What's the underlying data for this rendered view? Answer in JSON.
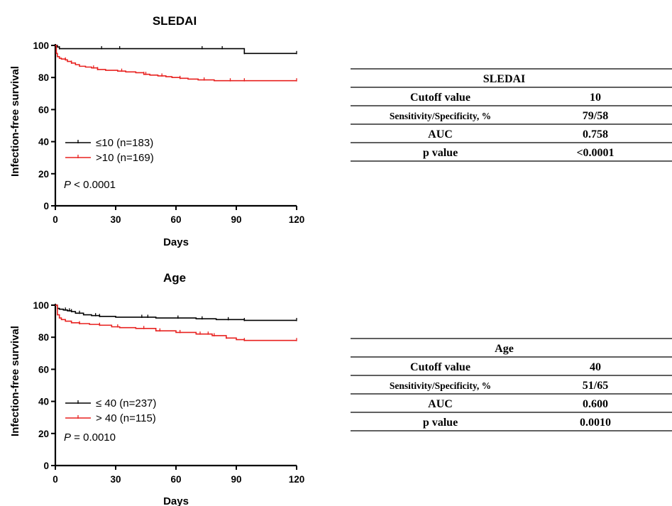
{
  "chart_data": [
    {
      "type": "line",
      "subtype": "kaplan-meier",
      "title": "SLEDAI",
      "xlabel": "Days",
      "ylabel": "Infection-free survival",
      "xlim": [
        0,
        120
      ],
      "ylim": [
        0,
        100
      ],
      "xticks": [
        0,
        30,
        60,
        90,
        120
      ],
      "yticks": [
        0,
        20,
        40,
        60,
        80,
        100
      ],
      "p_value": {
        "prefix": "P",
        "text": " < 0.0001"
      },
      "legend_placement": "lower-left",
      "series": [
        {
          "name": "≤10 (n=183)",
          "color": "#000000",
          "x": [
            0,
            1,
            2,
            94,
            120
          ],
          "y": [
            100,
            99,
            98,
            95,
            95
          ],
          "censor_x": [
            2,
            23,
            32,
            73,
            83,
            94,
            120
          ]
        },
        {
          "name": ">10 (n=169)",
          "color": "#e8211f",
          "x": [
            0,
            0.5,
            1,
            2,
            3,
            5,
            6,
            8,
            10,
            12,
            15,
            18,
            21,
            25,
            28,
            31,
            35,
            40,
            44,
            47,
            51,
            55,
            58,
            62,
            66,
            71,
            75,
            79,
            94,
            120
          ],
          "y": [
            100,
            95,
            93,
            92,
            91.5,
            91,
            90,
            89,
            88,
            87,
            86.5,
            86,
            85,
            84.5,
            84.5,
            84,
            83.5,
            83,
            82,
            81.5,
            81,
            80.5,
            80,
            79.5,
            79,
            78.5,
            78.5,
            78,
            78,
            78
          ],
          "censor_x": [
            5,
            8,
            19,
            21,
            33,
            44,
            45,
            53,
            62,
            74,
            87,
            94,
            120
          ]
        }
      ]
    },
    {
      "type": "line",
      "subtype": "kaplan-meier",
      "title": "Age",
      "xlabel": "Days",
      "ylabel": "Infection-free survival",
      "xlim": [
        0,
        120
      ],
      "ylim": [
        0,
        100
      ],
      "xticks": [
        0,
        30,
        60,
        90,
        120
      ],
      "yticks": [
        0,
        20,
        40,
        60,
        80,
        100
      ],
      "p_value": {
        "prefix": "P",
        "text": " = 0.0010"
      },
      "legend_placement": "lower-left",
      "series": [
        {
          "name": "≤ 40 (n=237)",
          "color": "#000000",
          "x": [
            0,
            1,
            2,
            4,
            6,
            8,
            10,
            14,
            18,
            22,
            30,
            40,
            50,
            60,
            70,
            80,
            94,
            120
          ],
          "y": [
            100,
            98,
            97.5,
            97,
            96.5,
            96,
            95,
            94,
            93.5,
            93,
            92.5,
            92.5,
            92,
            92,
            91.5,
            91,
            90.5,
            90.5
          ],
          "censor_x": [
            5,
            7,
            8,
            12,
            20,
            22,
            43,
            46,
            61,
            73,
            86,
            94,
            120
          ]
        },
        {
          "name": "> 40 (n=115)",
          "color": "#e8211f",
          "x": [
            0,
            1,
            2,
            3,
            5,
            8,
            12,
            17,
            22,
            28,
            32,
            40,
            50,
            60,
            70,
            78,
            85,
            90,
            94,
            120
          ],
          "y": [
            100,
            94,
            92,
            91,
            90,
            89,
            88.5,
            88,
            87.5,
            86.5,
            86,
            85.5,
            84,
            83,
            82,
            81,
            79.5,
            78.5,
            78,
            78
          ],
          "censor_x": [
            12,
            22,
            31,
            44,
            52,
            62,
            72,
            76,
            79,
            85,
            94,
            120
          ]
        }
      ]
    }
  ],
  "tables": [
    {
      "header": "SLEDAI",
      "rows": [
        {
          "label": "Cutoff value",
          "value": "10",
          "small": false
        },
        {
          "label": "Sensitivity/Specificity, %",
          "value": "79/58",
          "small": true
        },
        {
          "label": "AUC",
          "value": "0.758",
          "small": false
        },
        {
          "label": "p value",
          "value": "<0.0001",
          "small": false
        }
      ]
    },
    {
      "header": "Age",
      "rows": [
        {
          "label": "Cutoff value",
          "value": "40",
          "small": false
        },
        {
          "label": "Sensitivity/Specificity, %",
          "value": "51/65",
          "small": true
        },
        {
          "label": "AUC",
          "value": "0.600",
          "small": false
        },
        {
          "label": "p value",
          "value": "0.0010",
          "small": false
        }
      ]
    }
  ]
}
